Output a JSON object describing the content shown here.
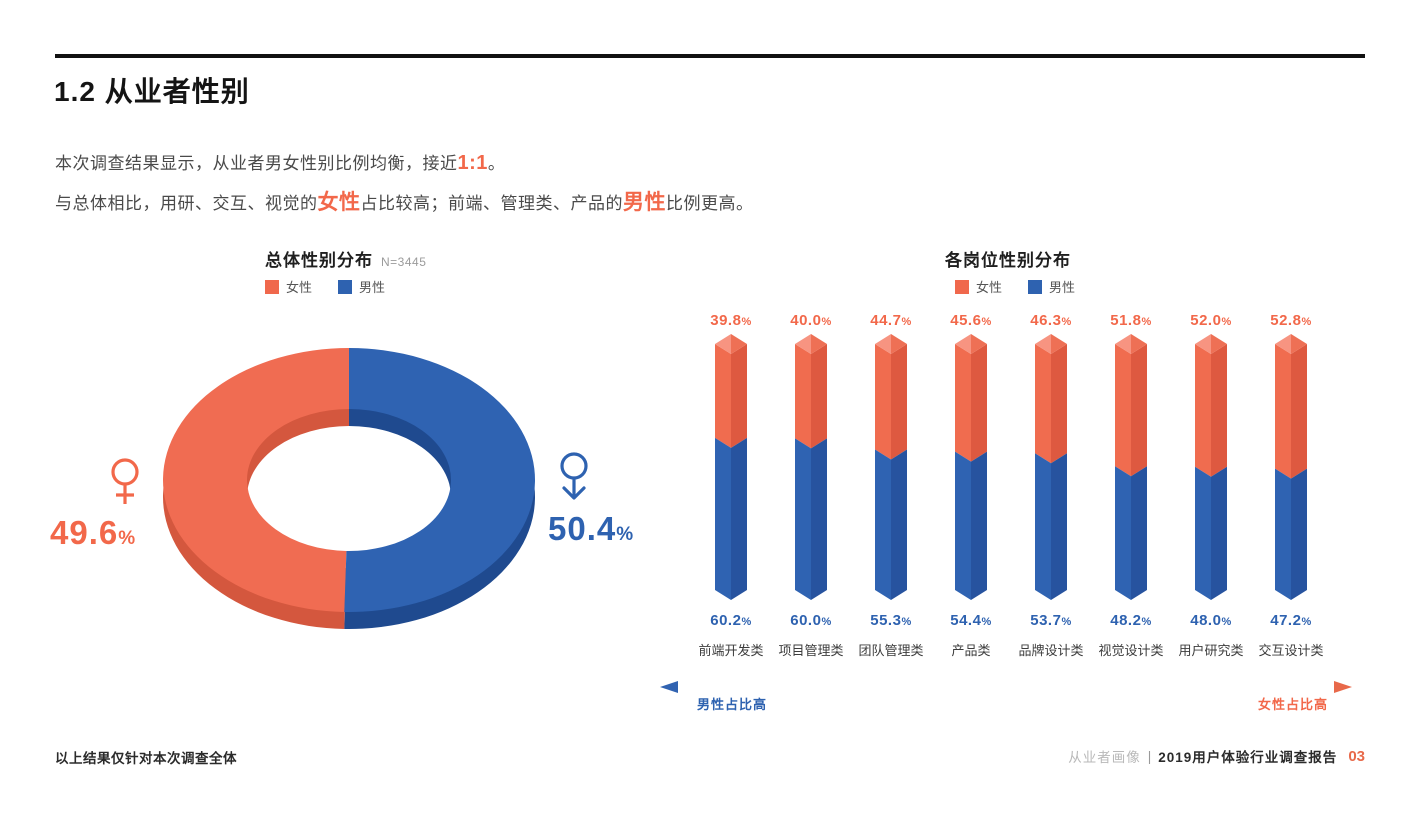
{
  "header": {
    "title": "1.2 从业者性别"
  },
  "intro": {
    "line1": {
      "pre": "本次调查结果显示，从业者男女性别比例均衡，接近",
      "highlight": "1:1",
      "post": "。"
    },
    "line2": {
      "seg1": "与总体相比，用研、交互、视觉的",
      "hl1": "女性",
      "seg2": "占比较高；前端、管理类、产品的",
      "hl2": "男性",
      "seg3": "比例更高。"
    }
  },
  "donut": {
    "title": "总体性别分布",
    "sample": "N=3445",
    "legend": [
      "女性",
      "男性"
    ],
    "female_value": "49.6",
    "male_value": "50.4",
    "percent_sign": "%"
  },
  "bars": {
    "title": "各岗位性别分布",
    "legend": [
      "女性",
      "男性"
    ],
    "axis_left": "男性占比高",
    "axis_right": "女性占比高"
  },
  "footer": {
    "note": "以上结果仅针对本次调查全体",
    "brand": "从业者画像",
    "divider": "|",
    "report": "2019用户体验行业调查报告",
    "page": "03"
  },
  "colors": {
    "female_accent": "#f2684a",
    "male_accent": "#2e62b0",
    "donut_female": "#f06c52",
    "donut_female_dark": "#d4573e",
    "donut_male": "#2f63b2",
    "donut_male_dark": "#1f4a8f",
    "bar_female_left": "#f06c4f",
    "bar_female_right": "#de5940",
    "bar_cap_left": "#f79481",
    "bar_cap_right": "#ee7055",
    "bar_male_left": "#2f63b2",
    "bar_male_right": "#27539f"
  },
  "chart_data": [
    {
      "type": "pie",
      "title": "总体性别分布",
      "sample_label": "N=3445",
      "labels": [
        "女性",
        "男性"
      ],
      "values": [
        49.6,
        50.4
      ],
      "value_suffix": "%",
      "legend_position": "top",
      "style": "3d-donut, female left half orange, male right half blue"
    },
    {
      "type": "bar",
      "title": "各岗位性别分布",
      "stacked": true,
      "orientation": "vertical",
      "categories": [
        "前端开发类",
        "项目管理类",
        "团队管理类",
        "产品类",
        "品牌设计类",
        "视觉设计类",
        "用户研究类",
        "交互设计类"
      ],
      "series": [
        {
          "name": "女性",
          "values": [
            39.8,
            40.0,
            44.7,
            45.6,
            46.3,
            51.8,
            52.0,
            52.8
          ]
        },
        {
          "name": "男性",
          "values": [
            60.2,
            60.0,
            55.3,
            54.4,
            53.7,
            48.2,
            48.0,
            47.2
          ]
        }
      ],
      "value_suffix": "%",
      "ylim": [
        0,
        100
      ],
      "grid": false,
      "legend_position": "top",
      "axis_annotation": {
        "left": "男性占比高",
        "right": "女性占比高"
      }
    }
  ]
}
